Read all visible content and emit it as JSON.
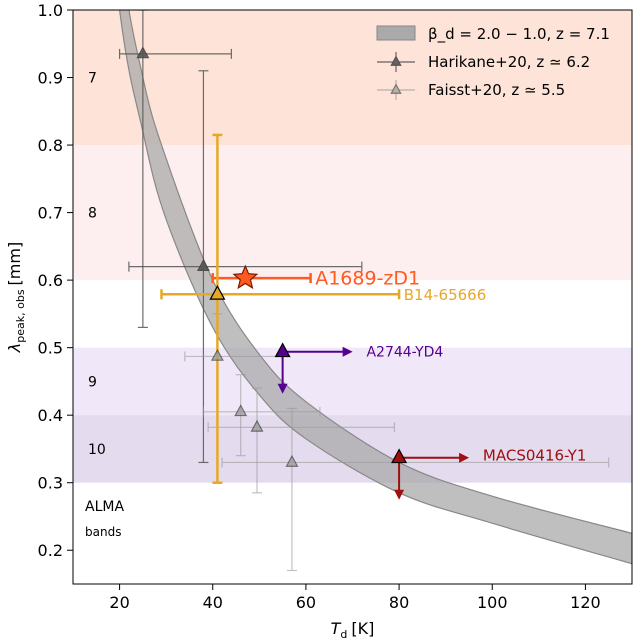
{
  "chart_data": {
    "type": "scatter",
    "xlabel_main": "T",
    "xlabel_sub": "d",
    "xlabel_unit": "[K]",
    "ylabel_main": "λ",
    "ylabel_sub": "peak, obs",
    "ylabel_unit": "[mm]",
    "xlim": [
      10,
      130
    ],
    "ylim": [
      0.15,
      1.0
    ],
    "xticks": [
      20,
      40,
      60,
      80,
      100,
      120
    ],
    "yticks": [
      0.2,
      0.3,
      0.4,
      0.5,
      0.6,
      0.7,
      0.8,
      0.9,
      1.0
    ],
    "xtick_labels": [
      "20",
      "40",
      "60",
      "80",
      "100",
      "120"
    ],
    "ytick_labels": [
      "0.2",
      "0.3",
      "0.4",
      "0.5",
      "0.6",
      "0.7",
      "0.8",
      "0.9",
      "1.0"
    ],
    "grid": false,
    "legend_position": "top-right",
    "alma_bands": [
      {
        "label": "7",
        "y0": 0.8,
        "y1": 1.0,
        "color": "#fde3d8"
      },
      {
        "label": "8",
        "y0": 0.6,
        "y1": 0.8,
        "color": "#fdeef0"
      },
      {
        "label": "9",
        "y0": 0.4,
        "y1": 0.5,
        "color": "#f0e8f8"
      },
      {
        "label": "10",
        "y0": 0.3,
        "y1": 0.4,
        "color": "#e4dbef"
      }
    ],
    "alma_label_line1": "ALMA",
    "alma_label_line2": "bands",
    "band_curve": {
      "legend_label": "β_d = 2.0 − 1.0,  z = 7.1",
      "color": "#aaaaaa",
      "upper": [
        [
          13,
          1.6
        ],
        [
          20,
          1.1
        ],
        [
          25,
          0.9
        ],
        [
          30,
          0.78
        ],
        [
          40,
          0.6
        ],
        [
          50,
          0.49
        ],
        [
          60,
          0.42
        ],
        [
          80,
          0.33
        ],
        [
          100,
          0.28
        ],
        [
          130,
          0.225
        ]
      ],
      "lower": [
        [
          13,
          1.45
        ],
        [
          20,
          1.0
        ],
        [
          25,
          0.82
        ],
        [
          30,
          0.69
        ],
        [
          40,
          0.53
        ],
        [
          50,
          0.43
        ],
        [
          60,
          0.365
        ],
        [
          80,
          0.285
        ],
        [
          100,
          0.24
        ],
        [
          130,
          0.18
        ]
      ]
    },
    "series": [
      {
        "name": "Harikane+20, z ≃ 6.2",
        "color": "#555555",
        "points": [
          {
            "x": 25,
            "y": 0.935,
            "xerr": [
              20,
              44
            ],
            "yerr": [
              0.53,
              1.0
            ]
          },
          {
            "x": 38,
            "y": 0.62,
            "xerr": [
              22,
              72
            ],
            "yerr": [
              0.33,
              0.91
            ]
          }
        ]
      },
      {
        "name": "Faisst+20, z ≃ 5.5",
        "color": "#9a9a9a",
        "points": [
          {
            "x": 41,
            "y": 0.487,
            "xerr": [
              34,
              55
            ],
            "yerr": [
              0.3,
              0.55
            ]
          },
          {
            "x": 46,
            "y": 0.405,
            "xerr": [
              38,
              63
            ],
            "yerr": [
              0.34,
              0.46
            ]
          },
          {
            "x": 49.5,
            "y": 0.382,
            "xerr": [
              39,
              79
            ],
            "yerr": [
              0.285,
              0.44
            ]
          },
          {
            "x": 57,
            "y": 0.33,
            "xerr": [
              42,
              125
            ],
            "yerr": [
              0.17,
              0.41
            ]
          }
        ]
      }
    ],
    "objects": [
      {
        "name": "A1689-zD1",
        "x": 47,
        "y": 0.603,
        "xerr": [
          40,
          61
        ],
        "yerr": [
          0.598,
          0.608
        ],
        "color": "#ff5a1f",
        "marker": "star",
        "label_x": 62,
        "label_y": 0.603,
        "label_size": 19
      },
      {
        "name": "B14-65666",
        "x": 41,
        "y": 0.579,
        "xerr": [
          29,
          80
        ],
        "yerr": [
          0.3,
          0.815
        ],
        "color": "#e8a827",
        "marker": "triangle",
        "label_x": 81,
        "label_y": 0.578,
        "label_size": 15
      },
      {
        "name": "A2744-YD4",
        "x": 55,
        "y": 0.494,
        "color": "#55008f",
        "marker": "triangle",
        "arrows": [
          "right",
          "down"
        ],
        "label_x": 73,
        "label_y": 0.494,
        "label_size": 14
      },
      {
        "name": "MACS0416-Y1",
        "x": 80,
        "y": 0.337,
        "color": "#a00e0e",
        "marker": "triangle",
        "arrows": [
          "right",
          "down"
        ],
        "label_x": 98,
        "label_y": 0.341,
        "label_size": 15
      }
    ]
  }
}
